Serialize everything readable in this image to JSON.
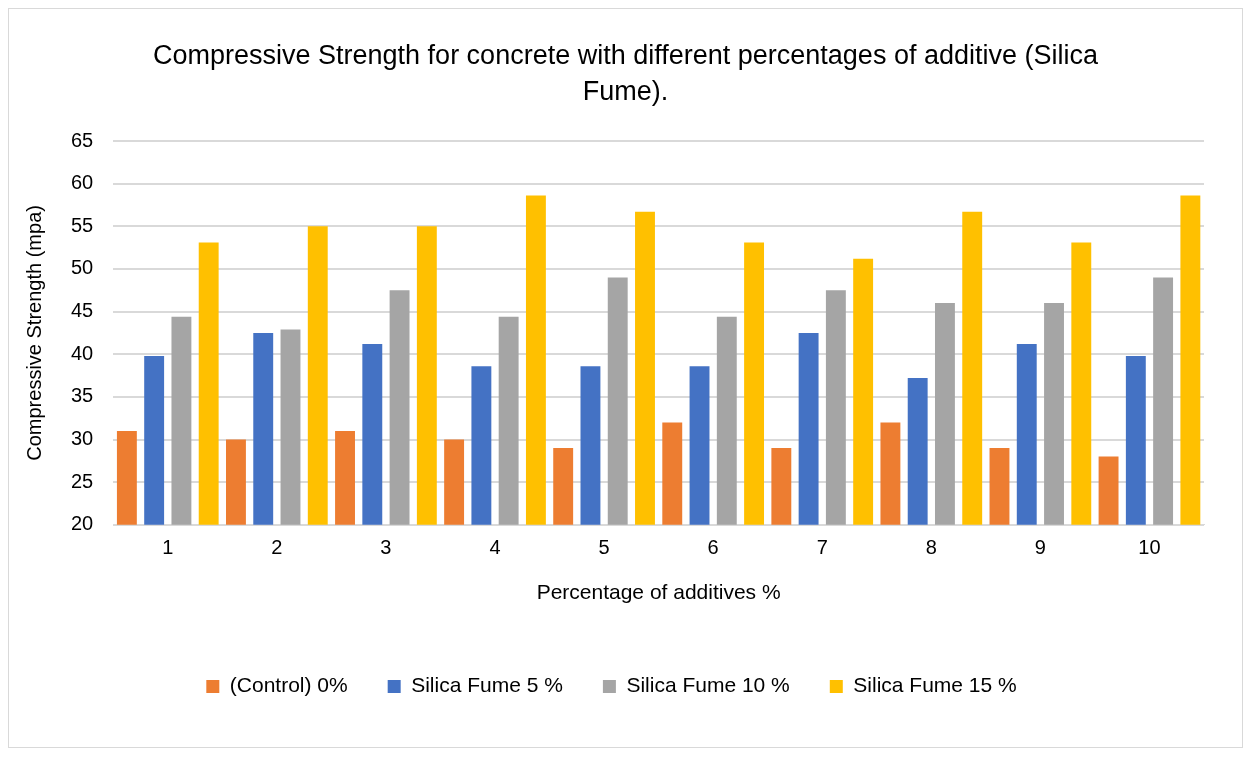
{
  "chart_data": {
    "type": "bar",
    "title": "Compressive Strength for concrete with different percentages of additive  (Silica Fume).",
    "xlabel": "Percentage of additives %",
    "ylabel": "Compressive Strength (mpa)",
    "categories": [
      "1",
      "2",
      "3",
      "4",
      "5",
      "6",
      "7",
      "8",
      "9",
      "10"
    ],
    "series": [
      {
        "name": "(Control) 0%",
        "color": "#ed7d31",
        "values": [
          31,
          30,
          31,
          30,
          29,
          32,
          29,
          32,
          29,
          28
        ]
      },
      {
        "name": "Silica Fume 5 %",
        "color": "#4472c4",
        "values": [
          39.8,
          42.5,
          41.2,
          38.6,
          38.6,
          38.6,
          42.5,
          37.2,
          41.2,
          39.8
        ]
      },
      {
        "name": "Silica Fume 10 %",
        "color": "#a5a5a5",
        "values": [
          44.4,
          42.9,
          47.5,
          44.4,
          49,
          44.4,
          47.5,
          46,
          46,
          49
        ]
      },
      {
        "name": "Silica Fume 15 %",
        "color": "#ffc000",
        "values": [
          53.1,
          55,
          55,
          58.6,
          56.7,
          53.1,
          51.2,
          56.7,
          53.1,
          58.6
        ]
      }
    ],
    "ylim": [
      20,
      65
    ],
    "yticks": [
      20,
      25,
      30,
      35,
      40,
      45,
      50,
      55,
      60,
      65
    ],
    "grid": "y",
    "legend": "bottom"
  }
}
